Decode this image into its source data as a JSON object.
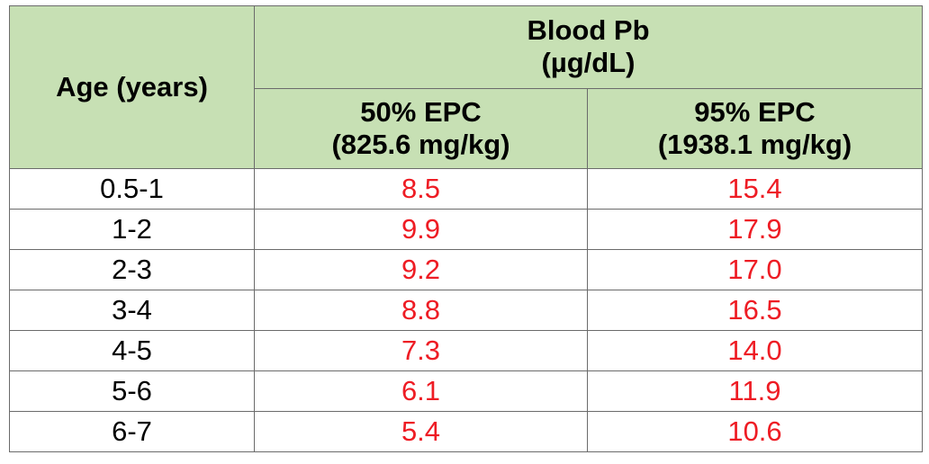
{
  "header": {
    "age_label": "Age (years)",
    "group_line1": "Blood Pb",
    "group_line2": "(µg/dL)",
    "col50_line1": "50% EPC",
    "col50_line2": "(825.6 mg/kg)",
    "col95_line1": "95% EPC",
    "col95_line2": "(1938.1 mg/kg)"
  },
  "rows": [
    {
      "age": "0.5-1",
      "epc50": "8.5",
      "epc95": "15.4"
    },
    {
      "age": "1-2",
      "epc50": "9.9",
      "epc95": "17.9"
    },
    {
      "age": "2-3",
      "epc50": "9.2",
      "epc95": "17.0"
    },
    {
      "age": "3-4",
      "epc50": "8.8",
      "epc95": "16.5"
    },
    {
      "age": "4-5",
      "epc50": "7.3",
      "epc95": "14.0"
    },
    {
      "age": "5-6",
      "epc50": "6.1",
      "epc95": "11.9"
    },
    {
      "age": "6-7",
      "epc50": "5.4",
      "epc95": "10.6"
    }
  ],
  "colors": {
    "header_bg": "#c7e0b4",
    "value_text": "#ee1c24",
    "border": "#6b6b6b"
  }
}
